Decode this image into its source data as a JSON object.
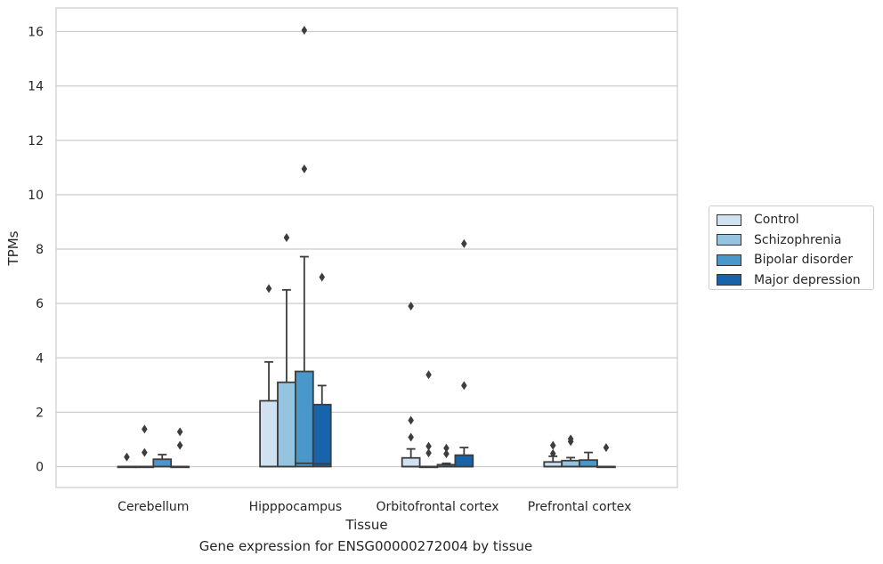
{
  "chart_data": {
    "type": "box",
    "caption": "Gene expression for ENSG00000272004 by tissue",
    "xlabel": "Tissue",
    "ylabel": "TPMs",
    "ylim": [
      -0.8,
      16.9
    ],
    "yticks": [
      0,
      2,
      4,
      6,
      8,
      10,
      12,
      14,
      16
    ],
    "grid": "horizontal",
    "legend_position": "right",
    "categories": [
      "Cerebellum",
      "Hipppocampus",
      "Orbitofrontal cortex",
      "Prefrontal cortex"
    ],
    "series": [
      {
        "name": "Control",
        "color": "#d0e1f2",
        "boxes": [
          {
            "whisker_low": 0,
            "q1": 0,
            "median": 0,
            "q3": 0,
            "whisker_high": 0,
            "outliers": [
              0.35
            ]
          },
          {
            "whisker_low": 0,
            "q1": 0,
            "median": 0,
            "q3": 2.42,
            "whisker_high": 3.85,
            "outliers": [
              6.55
            ]
          },
          {
            "whisker_low": 0,
            "q1": 0,
            "median": 0,
            "q3": 0.32,
            "whisker_high": 0.65,
            "outliers": [
              1.08,
              1.7,
              5.9
            ]
          },
          {
            "whisker_low": 0,
            "q1": 0,
            "median": 0,
            "q3": 0.17,
            "whisker_high": 0.38,
            "outliers": [
              0.48,
              0.78
            ]
          }
        ]
      },
      {
        "name": "Schizophrenia",
        "color": "#94c4df",
        "boxes": [
          {
            "whisker_low": 0,
            "q1": 0,
            "median": 0,
            "q3": 0,
            "whisker_high": 0,
            "outliers": [
              0.52,
              1.38
            ]
          },
          {
            "whisker_low": 0,
            "q1": 0,
            "median": 0,
            "q3": 3.1,
            "whisker_high": 6.5,
            "outliers": [
              8.42
            ]
          },
          {
            "whisker_low": 0,
            "q1": 0,
            "median": 0,
            "q3": 0,
            "whisker_high": 0,
            "outliers": [
              0.5,
              0.75,
              3.38
            ]
          },
          {
            "whisker_low": 0,
            "q1": 0,
            "median": 0,
            "q3": 0.22,
            "whisker_high": 0.33,
            "outliers": [
              0.92,
              1.02
            ]
          }
        ]
      },
      {
        "name": "Bipolar disorder",
        "color": "#4a98c9",
        "boxes": [
          {
            "whisker_low": 0,
            "q1": 0,
            "median": 0,
            "q3": 0.27,
            "whisker_high": 0.44,
            "outliers": []
          },
          {
            "whisker_low": 0,
            "q1": 0,
            "median": 0.12,
            "q3": 3.5,
            "whisker_high": 7.72,
            "outliers": [
              10.95,
              16.05
            ]
          },
          {
            "whisker_low": 0,
            "q1": 0,
            "median": 0,
            "q3": 0.07,
            "whisker_high": 0.12,
            "outliers": [
              0.47,
              0.68
            ]
          },
          {
            "whisker_low": 0,
            "q1": 0,
            "median": 0,
            "q3": 0.24,
            "whisker_high": 0.52,
            "outliers": []
          }
        ]
      },
      {
        "name": "Major depression",
        "color": "#1764ab",
        "boxes": [
          {
            "whisker_low": 0,
            "q1": 0,
            "median": 0,
            "q3": 0,
            "whisker_high": 0,
            "outliers": [
              0.78,
              1.28
            ]
          },
          {
            "whisker_low": 0,
            "q1": 0,
            "median": 0.1,
            "q3": 2.28,
            "whisker_high": 2.98,
            "outliers": [
              6.97
            ]
          },
          {
            "whisker_low": 0,
            "q1": 0,
            "median": 0,
            "q3": 0.42,
            "whisker_high": 0.7,
            "outliers": [
              2.98,
              8.2
            ]
          },
          {
            "whisker_low": 0,
            "q1": 0,
            "median": 0,
            "q3": 0,
            "whisker_high": 0,
            "outliers": [
              0.7
            ]
          }
        ]
      }
    ]
  }
}
